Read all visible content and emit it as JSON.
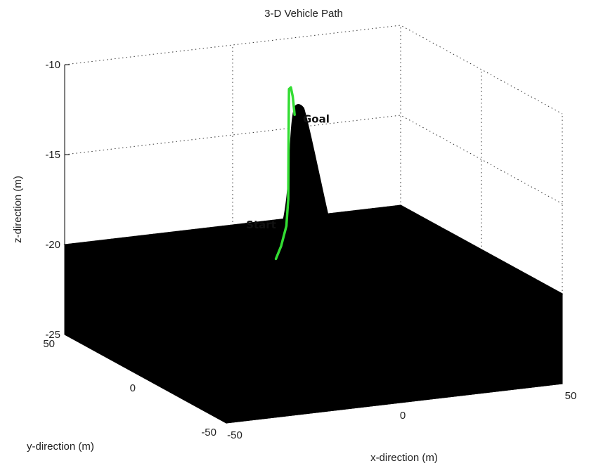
{
  "chart_data": {
    "type": "3d-line",
    "title": "3-D Vehicle Path",
    "xlabel": "x-direction (m)",
    "ylabel": "y-direction (m)",
    "zlabel": "z-direction (m)",
    "xlim": [
      -50,
      50
    ],
    "ylim": [
      -50,
      50
    ],
    "zlim": [
      -25,
      -10
    ],
    "x_ticks": [
      "-50",
      "0",
      "50"
    ],
    "y_ticks": [
      "-50",
      "0",
      "50"
    ],
    "z_ticks": [
      "-25",
      "-20",
      "-15",
      "-10"
    ],
    "grid": true,
    "surface": {
      "color": "#000000",
      "base_z": -20,
      "peak": {
        "x": 10,
        "y": 30,
        "z": -12.5
      }
    },
    "path": {
      "color": "#33dd33",
      "x": [
        -3,
        0,
        3,
        5,
        6.5,
        8,
        9.5,
        11,
        13,
        15,
        17
      ],
      "y": [
        17,
        20,
        23,
        26,
        29,
        32,
        35,
        38,
        41,
        44,
        47
      ],
      "z": [
        -20.2,
        -19.7,
        -18.8,
        -17.5,
        -15.8,
        -14.2,
        -12.9,
        -12.1,
        -12.2,
        -12.9,
        -14.1
      ]
    },
    "annotations": [
      {
        "text": "Start",
        "x": -5,
        "y": 22,
        "z": -18.7
      },
      {
        "text": "Goal",
        "x": 22,
        "y": 44,
        "z": -14.5
      }
    ]
  }
}
